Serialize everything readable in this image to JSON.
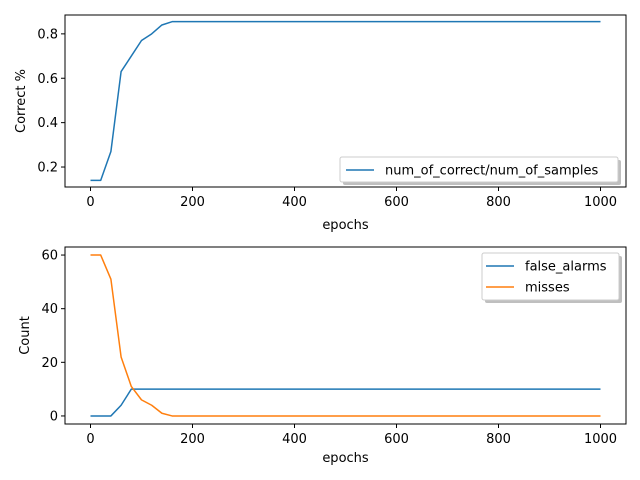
{
  "chart_data": [
    {
      "type": "line",
      "xlabel": "epochs",
      "ylabel": "Correct %",
      "xlim": [
        -50,
        1050
      ],
      "ylim": [
        0.11,
        0.885
      ],
      "xticks": [
        0,
        200,
        400,
        600,
        800,
        1000
      ],
      "yticks": [
        0.2,
        0.4,
        0.6,
        0.8
      ],
      "grid": false,
      "legend_position": "lower-right",
      "series": [
        {
          "name": "num_of_correct/num_of_samples",
          "color": "#1f77b4",
          "x": [
            0,
            20,
            40,
            60,
            80,
            100,
            120,
            140,
            160,
            180,
            200,
            1000
          ],
          "y": [
            0.14,
            0.14,
            0.27,
            0.63,
            0.7,
            0.77,
            0.8,
            0.84,
            0.855,
            0.855,
            0.855,
            0.855
          ]
        }
      ]
    },
    {
      "type": "line",
      "xlabel": "epochs",
      "ylabel": "Count",
      "xlim": [
        -50,
        1050
      ],
      "ylim": [
        -3,
        63
      ],
      "xticks": [
        0,
        200,
        400,
        600,
        800,
        1000
      ],
      "yticks": [
        0,
        20,
        40,
        60
      ],
      "grid": false,
      "legend_position": "upper-right",
      "series": [
        {
          "name": "false_alarms",
          "color": "#1f77b4",
          "x": [
            0,
            20,
            40,
            60,
            80,
            100,
            120,
            140,
            160,
            1000
          ],
          "y": [
            0,
            0,
            0,
            4,
            10,
            10,
            10,
            10,
            10,
            10
          ]
        },
        {
          "name": "misses",
          "color": "#ff7f0e",
          "x": [
            0,
            20,
            40,
            60,
            80,
            100,
            120,
            140,
            160,
            180,
            1000
          ],
          "y": [
            60,
            60,
            51,
            22,
            11,
            6,
            4,
            1,
            0,
            0,
            0
          ]
        }
      ]
    }
  ]
}
